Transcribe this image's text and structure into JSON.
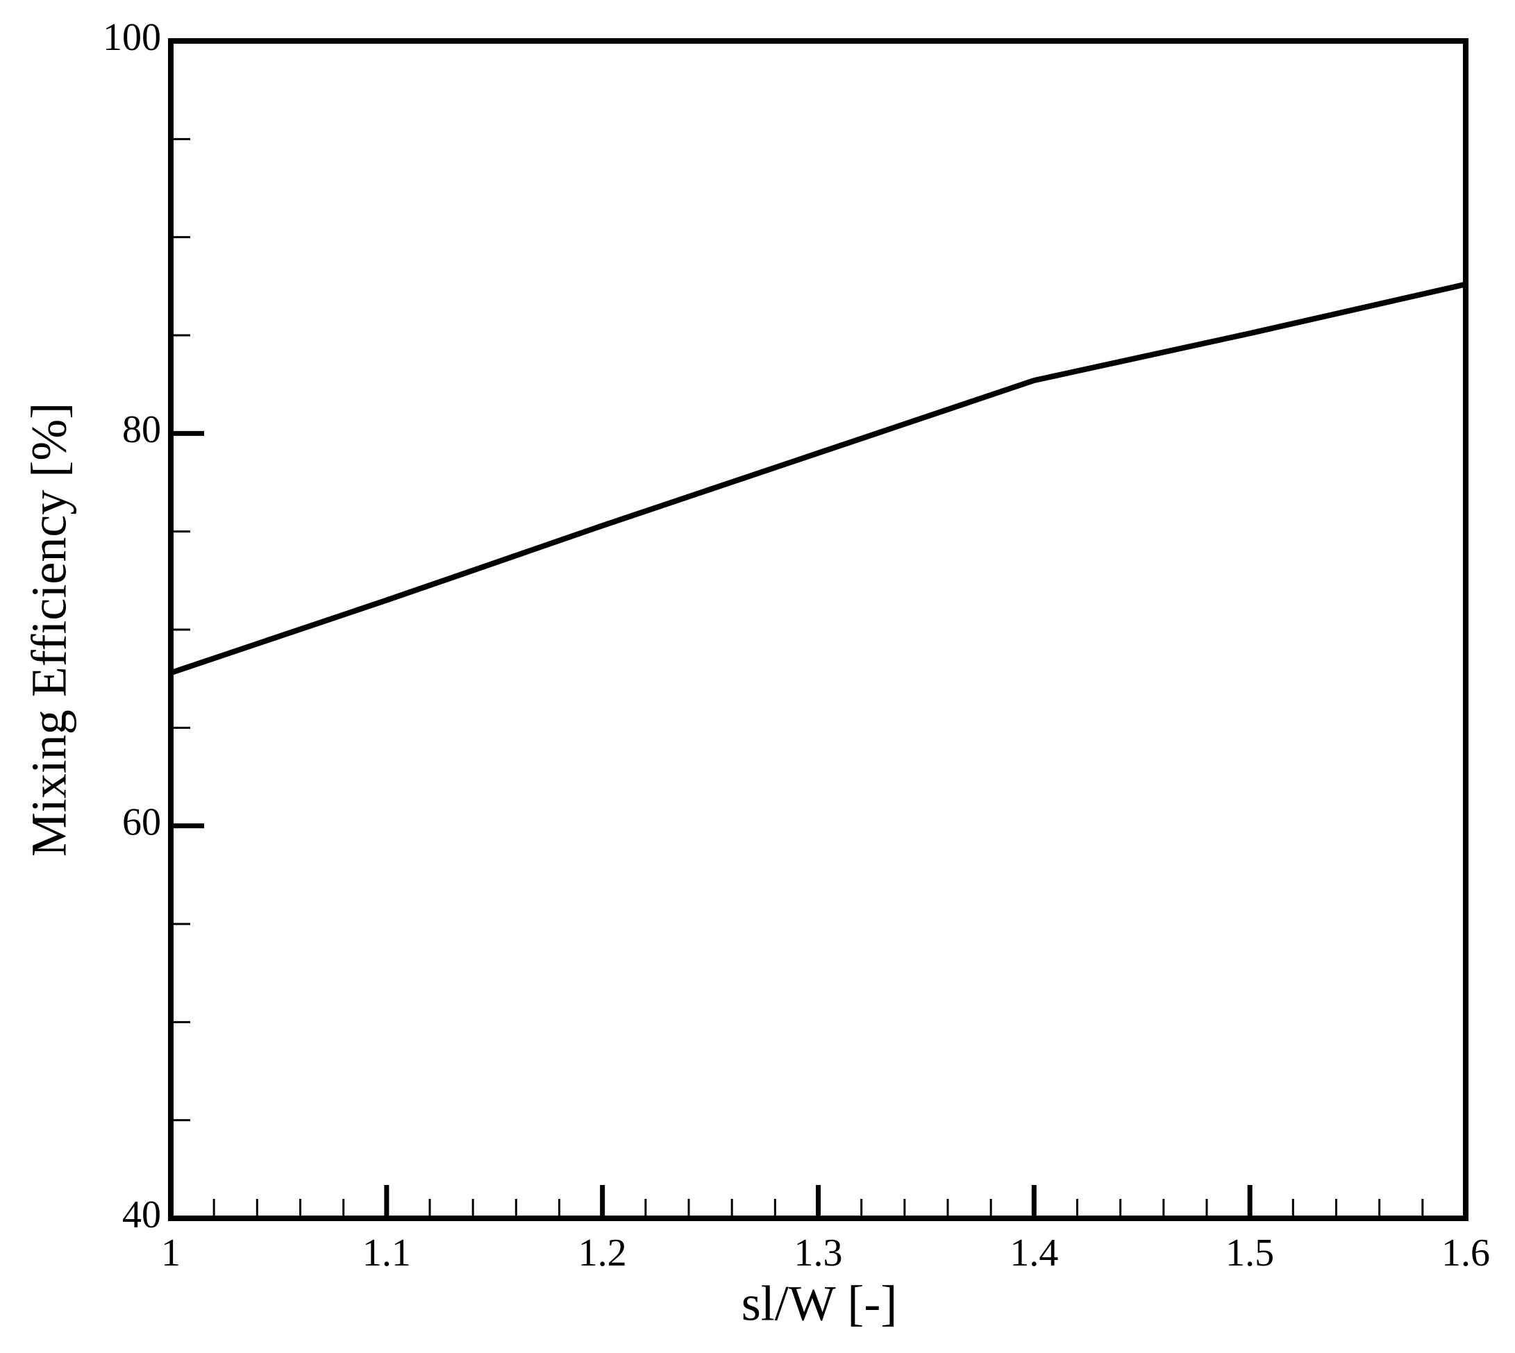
{
  "chart_data": {
    "type": "line",
    "xlabel": "sl/W [-]",
    "ylabel": "Mixing Efficiency [%]",
    "x": [
      1,
      1.1,
      1.2,
      1.3,
      1.4,
      1.5,
      1.6
    ],
    "series": [
      {
        "color": "#000000",
        "values": [
          67.8,
          71.5,
          75.3,
          79.0,
          82.7,
          85.1,
          87.6
        ]
      }
    ],
    "xlim": [
      1,
      1.6
    ],
    "xticks": [
      1,
      1.1,
      1.2,
      1.3,
      1.4,
      1.5,
      1.6
    ],
    "xminorticks": [
      1.02,
      1.04,
      1.06,
      1.08,
      1.12,
      1.14,
      1.16,
      1.18,
      1.22,
      1.24,
      1.26,
      1.28,
      1.32,
      1.34,
      1.36,
      1.38,
      1.42,
      1.44,
      1.46,
      1.48,
      1.52,
      1.54,
      1.56,
      1.58
    ],
    "ylim": [
      40,
      100
    ],
    "yticks": [
      40,
      60,
      80,
      100
    ],
    "yminorticks": [
      45,
      50,
      55,
      65,
      70,
      75,
      85,
      90,
      95
    ],
    "grid": false
  }
}
